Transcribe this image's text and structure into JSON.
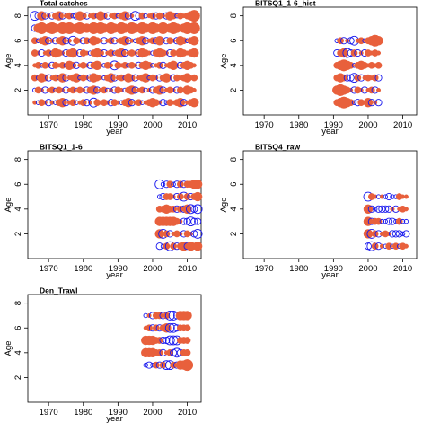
{
  "chart_data": [
    {
      "type": "scatter",
      "title": "Total catches",
      "xlabel": "year",
      "ylabel": "Age",
      "xlim": [
        1964,
        2014
      ],
      "ylim": [
        0,
        8.7
      ],
      "xticks": [
        1970,
        1980,
        1990,
        2000,
        2010
      ],
      "yticks": [
        2,
        4,
        6,
        8
      ],
      "residual_colors": {
        "positive": "#e8603c",
        "negative": "#1a1aee"
      },
      "residuals": [
        {
          "age": 1,
          "values": [
            1,
            -1,
            2,
            1,
            -2,
            1,
            -1,
            2,
            3,
            -2,
            1,
            2,
            -1,
            1,
            2,
            -2,
            1,
            -3,
            2,
            1,
            2,
            1,
            -2,
            2,
            1,
            -1,
            2,
            3,
            -2,
            1,
            2,
            -1,
            1,
            2,
            3,
            2,
            1,
            -2,
            -1,
            2,
            1,
            2,
            3,
            -2,
            1,
            2,
            3
          ]
        },
        {
          "age": 2,
          "values": [
            -1,
            2,
            1,
            -2,
            1,
            2,
            -1,
            2,
            1,
            -2,
            1,
            2,
            -1,
            2,
            1,
            -2,
            2,
            3,
            -2,
            1,
            2,
            -1,
            1,
            -2,
            2,
            1,
            -1,
            2,
            3,
            -2,
            1,
            2,
            -1,
            1,
            -2,
            2,
            3,
            -2,
            1,
            2,
            1,
            -2,
            2,
            1,
            3,
            2,
            1
          ]
        },
        {
          "age": 3,
          "values": [
            2,
            -1,
            3,
            2,
            -2,
            1,
            2,
            -1,
            3,
            -2,
            1,
            2,
            3,
            -1,
            2,
            1,
            -2,
            3,
            2,
            1,
            -1,
            2,
            3,
            -2,
            1,
            2,
            -1,
            3,
            2,
            -2,
            1,
            2,
            3,
            -1,
            2,
            1,
            -2,
            2,
            3,
            1,
            -2,
            2,
            1,
            2,
            3,
            1,
            2
          ]
        },
        {
          "age": 4,
          "values": [
            1,
            2,
            -1,
            2,
            1,
            -2,
            2,
            1,
            2,
            -1,
            3,
            2,
            -2,
            1,
            2,
            1,
            -2,
            2,
            3,
            1,
            -1,
            2,
            1,
            -3,
            2,
            1,
            2,
            -1,
            2,
            1,
            -2,
            2,
            3,
            2,
            -1,
            1,
            2,
            -2,
            1,
            2,
            3,
            1,
            -2,
            2,
            3,
            2,
            1
          ]
        },
        {
          "age": 5,
          "values": [
            2,
            1,
            -2,
            1,
            2,
            -1,
            3,
            2,
            1,
            -2,
            2,
            3,
            1,
            -2,
            2,
            1,
            -1,
            2,
            3,
            2,
            -2,
            1,
            2,
            -1,
            2,
            3,
            -2,
            1,
            2,
            1,
            -2,
            3,
            2,
            1,
            -1,
            2,
            3,
            2,
            1,
            -2,
            2,
            1,
            3,
            2,
            1,
            2,
            3
          ]
        },
        {
          "age": 6,
          "values": [
            2,
            -1,
            2,
            3,
            -2,
            1,
            -2,
            2,
            3,
            -2,
            1,
            -3,
            2,
            1,
            -2,
            2,
            -1,
            3,
            2,
            1,
            -2,
            1,
            2,
            -2,
            1,
            2,
            3,
            -2,
            1,
            -1,
            2,
            3,
            -2,
            1,
            2,
            -2,
            3,
            1,
            -2,
            2,
            1,
            -2,
            3,
            2,
            -1,
            2,
            3
          ]
        },
        {
          "age": 7,
          "values": [
            -2,
            3,
            4,
            2,
            3,
            4,
            3,
            2,
            4,
            3,
            4,
            2,
            3,
            4,
            2,
            3,
            2,
            4,
            3,
            4,
            3,
            2,
            4,
            3,
            2,
            4,
            3,
            2,
            4,
            3,
            2,
            4,
            3,
            2,
            4,
            3,
            2,
            4,
            2,
            3,
            4,
            3,
            2,
            3,
            4,
            3,
            4
          ]
        },
        {
          "age": 8,
          "values": [
            -3,
            -2,
            3,
            -2,
            1,
            -2,
            2,
            3,
            -2,
            1,
            2,
            -1,
            -2,
            3,
            2,
            -2,
            1,
            2,
            -1,
            3,
            2,
            -2,
            1,
            2,
            -1,
            2,
            3,
            -2,
            1,
            -3,
            -2,
            2,
            -1,
            1,
            2,
            -2,
            2,
            1,
            -2,
            3,
            2,
            -1,
            2,
            1,
            2,
            3,
            4
          ]
        }
      ]
    },
    {
      "type": "scatter",
      "title": "BITSQ1_1-6_hist",
      "xlabel": "year",
      "ylabel": "Age",
      "xlim": [
        1964,
        2014
      ],
      "ylim": [
        0,
        8.7
      ],
      "xticks": [
        1970,
        1980,
        1990,
        2000,
        2010
      ],
      "yticks": [
        2,
        4,
        6,
        8
      ],
      "residuals": [
        {
          "age": 1,
          "values": [
            2,
            3,
            4,
            3,
            2,
            -1,
            -2,
            2,
            1,
            3,
            -2,
            1,
            -2
          ]
        },
        {
          "age": 2,
          "values": [
            3,
            4,
            3,
            2,
            1,
            -2,
            2,
            1,
            -2,
            1,
            2,
            -2,
            1
          ]
        },
        {
          "age": 3,
          "values": [
            2,
            3,
            2,
            -2,
            -2,
            -3,
            2,
            -2,
            1,
            2,
            1,
            2,
            -2
          ]
        },
        {
          "age": 4,
          "values": [
            2,
            3,
            4,
            3,
            2,
            -1,
            2,
            3,
            2,
            1,
            2,
            1,
            2
          ]
        },
        {
          "age": 5,
          "values": [
            -2,
            2,
            3,
            -3,
            -2,
            2,
            -2,
            1,
            -2,
            2,
            1,
            2,
            1
          ]
        },
        {
          "age": 6,
          "values": [
            -1,
            2,
            -2,
            1,
            -2,
            -3,
            1,
            2,
            -1,
            2,
            3,
            4,
            3
          ]
        }
      ]
    },
    {
      "type": "scatter",
      "title": "BITSQ1_1-6",
      "xlabel": "year",
      "ylabel": "Age",
      "xlim": [
        1964,
        2014
      ],
      "ylim": [
        0,
        8.7
      ],
      "xticks": [
        1970,
        1980,
        1990,
        2000,
        2010
      ],
      "yticks": [
        2,
        4,
        6,
        8
      ],
      "residuals": [
        {
          "age": 1,
          "values": [
            -2,
            -1,
            2,
            -3,
            2,
            -2,
            2,
            3,
            -2,
            3,
            2,
            3
          ]
        },
        {
          "age": 2,
          "values": [
            3,
            -3,
            2,
            -2,
            1,
            2,
            1,
            -2,
            2,
            1,
            -2,
            -3
          ]
        },
        {
          "age": 3,
          "values": [
            3,
            3,
            3,
            3,
            3,
            2,
            1,
            -2,
            -2,
            -3,
            -2,
            -2
          ]
        },
        {
          "age": 4,
          "values": [
            2,
            2,
            3,
            2,
            2,
            -2,
            2,
            -2,
            3,
            -3,
            -2,
            -3
          ]
        },
        {
          "age": 5,
          "values": [
            -1,
            -2,
            2,
            2,
            1,
            -2,
            2,
            -3,
            2,
            -2,
            2,
            3
          ]
        },
        {
          "age": 6,
          "values": [
            -3,
            -1,
            -2,
            2,
            -1,
            -2,
            2,
            -2,
            2,
            2,
            3,
            3
          ]
        }
      ]
    },
    {
      "type": "scatter",
      "title": "BITSQ4_raw",
      "xlabel": "year",
      "ylabel": "Age",
      "xlim": [
        1964,
        2014
      ],
      "ylim": [
        0,
        8.7
      ],
      "xticks": [
        1970,
        1980,
        1990,
        2000,
        2010
      ],
      "yticks": [
        2,
        4,
        6,
        8
      ],
      "residuals": [
        {
          "age": 1,
          "values": [
            -2,
            -3,
            2,
            -2,
            1,
            -1,
            2,
            -1,
            2,
            -1,
            2,
            1
          ]
        },
        {
          "age": 2,
          "values": [
            3,
            -3,
            2,
            -2,
            1,
            2,
            1,
            -2,
            -2,
            -2,
            -1,
            -2
          ]
        },
        {
          "age": 3,
          "values": [
            3,
            -2,
            2,
            2,
            -1,
            -1,
            -2,
            -2,
            -1,
            2,
            -1,
            -1
          ]
        },
        {
          "age": 4,
          "values": [
            3,
            -2,
            -1,
            -2,
            -2,
            -2,
            -2,
            1,
            -2,
            1,
            2,
            1
          ]
        },
        {
          "age": 5,
          "values": [
            -3,
            2,
            1,
            -1,
            1,
            -1,
            -2,
            -1,
            -1,
            2,
            1,
            1
          ]
        }
      ]
    },
    {
      "type": "scatter",
      "title": "Den_Trawl",
      "xlabel": "year",
      "ylabel": "Age",
      "xlim": [
        1964,
        2014
      ],
      "ylim": [
        0,
        8.7
      ],
      "xticks": [
        1970,
        1980,
        1990,
        2000,
        2010
      ],
      "yticks": [
        2,
        4,
        6,
        8
      ],
      "residuals": [
        {
          "age": 3,
          "values": [
            -1,
            -2,
            -1,
            2,
            -2,
            2,
            -3,
            -3,
            2,
            -2,
            3,
            3,
            4
          ]
        },
        {
          "age": 4,
          "values": [
            3,
            3,
            3,
            2,
            2,
            -2,
            1,
            2,
            -2,
            -3,
            -2,
            2,
            2
          ]
        },
        {
          "age": 5,
          "values": [
            3,
            3,
            3,
            2,
            2,
            -2,
            -2,
            -3,
            -3,
            -3,
            2,
            2,
            2
          ]
        },
        {
          "age": 6,
          "values": [
            1,
            2,
            -2,
            2,
            -2,
            2,
            3,
            -3,
            -3,
            -2,
            2,
            2,
            2
          ]
        },
        {
          "age": 7,
          "values": [
            -1,
            1,
            -2,
            2,
            2,
            -2,
            2,
            -3,
            -3,
            -2,
            3,
            3,
            3
          ]
        }
      ]
    }
  ]
}
